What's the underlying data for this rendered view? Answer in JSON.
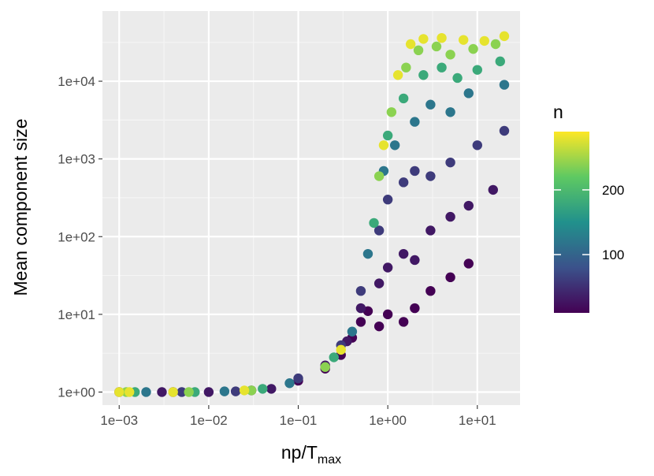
{
  "chart_data": {
    "type": "scatter",
    "title": "",
    "xlabel": "np/T",
    "xlabel_subscript": "max",
    "ylabel": "Mean component size",
    "xscale": "log10",
    "yscale": "log10",
    "xlim": [
      0.00065,
      30
    ],
    "ylim": [
      0.68,
      80000
    ],
    "x_ticks": [
      {
        "value": 0.001,
        "label": "1e−03"
      },
      {
        "value": 0.01,
        "label": "1e−02"
      },
      {
        "value": 0.1,
        "label": "1e−01"
      },
      {
        "value": 1,
        "label": "1e+00"
      },
      {
        "value": 10,
        "label": "1e+01"
      }
    ],
    "y_ticks": [
      {
        "value": 1,
        "label": "1e+00"
      },
      {
        "value": 10,
        "label": "1e+01"
      },
      {
        "value": 100,
        "label": "1e+02"
      },
      {
        "value": 1000,
        "label": "1e+03"
      },
      {
        "value": 10000,
        "label": "1e+04"
      }
    ],
    "color": {
      "variable": "n",
      "palette": "viridis",
      "colors": [
        "#440154",
        "#3b528b",
        "#21918c",
        "#5ec962",
        "#fde725"
      ],
      "domain": [
        10,
        290
      ],
      "breaks": [
        {
          "value": 100,
          "label": "100"
        },
        {
          "value": 200,
          "label": "200"
        }
      ]
    },
    "series": [
      {
        "name": "n = 10",
        "n": 10,
        "points": [
          [
            0.001,
            1.0
          ],
          [
            0.004,
            1.0
          ],
          [
            0.03,
            1.05
          ],
          [
            0.1,
            1.4
          ],
          [
            0.2,
            2.0
          ],
          [
            0.3,
            3.0
          ],
          [
            0.4,
            5.0
          ],
          [
            0.5,
            8.0
          ],
          [
            0.6,
            11.0
          ],
          [
            0.8,
            7.0
          ],
          [
            1.0,
            10.0
          ],
          [
            1.5,
            8.0
          ],
          [
            2.0,
            12.0
          ],
          [
            3.0,
            20.0
          ],
          [
            5.0,
            30.0
          ],
          [
            8.0,
            45.0
          ]
        ]
      },
      {
        "name": "n = 30",
        "n": 30,
        "points": [
          [
            0.003,
            1.0
          ],
          [
            0.01,
            1.0
          ],
          [
            0.05,
            1.1
          ],
          [
            0.2,
            2.2
          ],
          [
            0.35,
            4.5
          ],
          [
            0.5,
            12.0
          ],
          [
            0.8,
            25.0
          ],
          [
            1.0,
            40.0
          ],
          [
            1.5,
            60.0
          ],
          [
            2.0,
            50.0
          ],
          [
            3.0,
            120.0
          ],
          [
            5.0,
            180.0
          ],
          [
            8.0,
            250.0
          ],
          [
            15.0,
            400.0
          ]
        ]
      },
      {
        "name": "n = 60",
        "n": 60,
        "points": [
          [
            0.005,
            1.0
          ],
          [
            0.02,
            1.02
          ],
          [
            0.1,
            1.5
          ],
          [
            0.3,
            4.0
          ],
          [
            0.5,
            20.0
          ],
          [
            0.8,
            120.0
          ],
          [
            1.0,
            300.0
          ],
          [
            1.5,
            500.0
          ],
          [
            2.0,
            700.0
          ],
          [
            3.0,
            600.0
          ],
          [
            5.0,
            900.0
          ],
          [
            10.0,
            1500.0
          ],
          [
            20.0,
            2300.0
          ]
        ]
      },
      {
        "name": "n = 120",
        "n": 120,
        "points": [
          [
            0.002,
            1.0
          ],
          [
            0.015,
            1.02
          ],
          [
            0.08,
            1.3
          ],
          [
            0.4,
            6.0
          ],
          [
            0.6,
            60.0
          ],
          [
            0.9,
            700.0
          ],
          [
            1.2,
            1500.0
          ],
          [
            2.0,
            3000.0
          ],
          [
            3.0,
            5000.0
          ],
          [
            5.0,
            4000.0
          ],
          [
            8.0,
            7000.0
          ],
          [
            20.0,
            9000.0
          ]
        ]
      },
      {
        "name": "n = 180",
        "n": 180,
        "points": [
          [
            0.0015,
            1.0
          ],
          [
            0.007,
            1.0
          ],
          [
            0.04,
            1.1
          ],
          [
            0.25,
            2.8
          ],
          [
            0.7,
            150.0
          ],
          [
            1.0,
            2000.0
          ],
          [
            1.5,
            6000.0
          ],
          [
            2.5,
            12000.0
          ],
          [
            4.0,
            15000.0
          ],
          [
            6.0,
            11000.0
          ],
          [
            10.0,
            14000.0
          ],
          [
            18.0,
            18000.0
          ]
        ]
      },
      {
        "name": "n = 240",
        "n": 240,
        "points": [
          [
            0.0012,
            1.0
          ],
          [
            0.006,
            1.0
          ],
          [
            0.03,
            1.05
          ],
          [
            0.2,
            2.1
          ],
          [
            0.8,
            600.0
          ],
          [
            1.1,
            4000.0
          ],
          [
            1.6,
            15000.0
          ],
          [
            2.2,
            25000.0
          ],
          [
            3.5,
            28000.0
          ],
          [
            5.0,
            22000.0
          ],
          [
            9.0,
            26000.0
          ],
          [
            16.0,
            30000.0
          ]
        ]
      },
      {
        "name": "n = 280",
        "n": 280,
        "points": [
          [
            0.001,
            1.0
          ],
          [
            0.0013,
            1.0
          ],
          [
            0.004,
            1.0
          ],
          [
            0.025,
            1.05
          ],
          [
            0.3,
            3.5
          ],
          [
            0.9,
            1500.0
          ],
          [
            1.3,
            12000.0
          ],
          [
            1.8,
            30000.0
          ],
          [
            2.5,
            35000.0
          ],
          [
            4.0,
            36000.0
          ],
          [
            7.0,
            34000.0
          ],
          [
            12.0,
            33000.0
          ],
          [
            20.0,
            38000.0
          ]
        ]
      }
    ]
  }
}
